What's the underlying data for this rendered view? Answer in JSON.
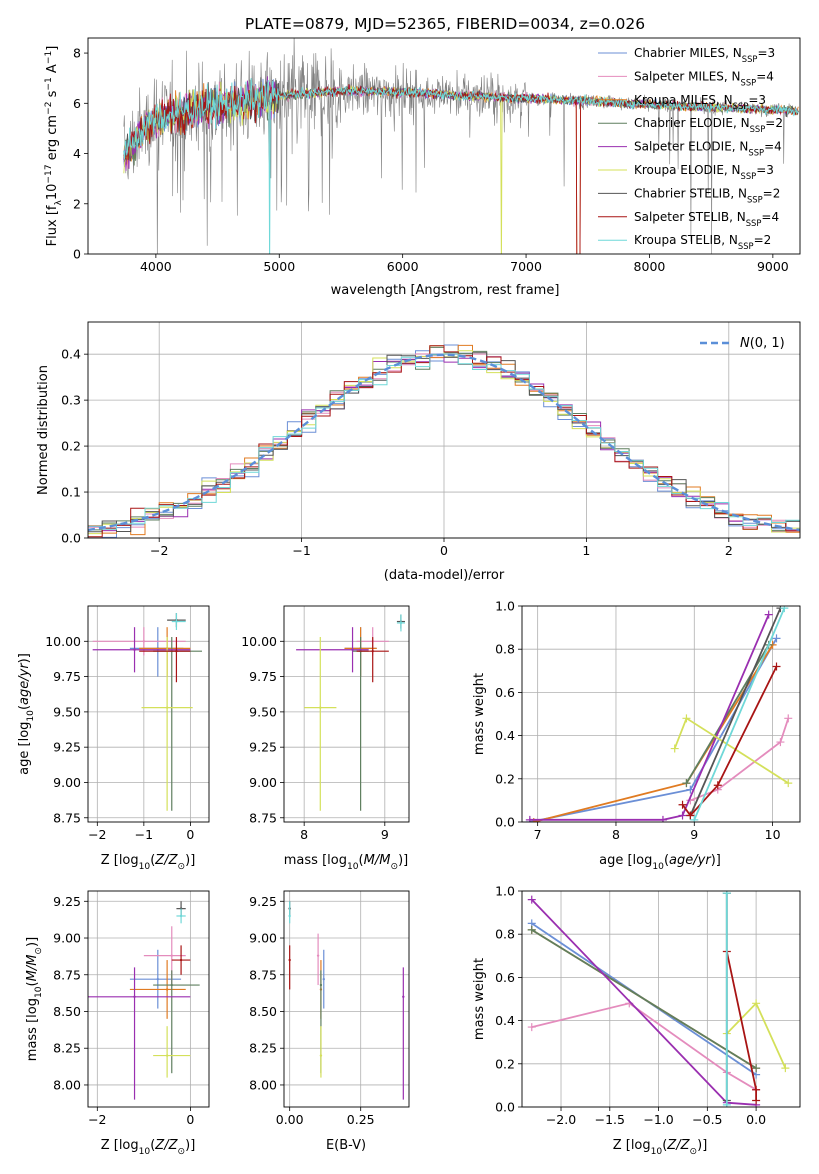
{
  "figure_title": "PLATE=0879, MJD=52365, FIBERID=0034, z=0.026",
  "colors": {
    "Chabrier MILES": "#6b8fd6",
    "Salpeter MILES": "#e48cbd",
    "Kroupa MILES": "#e07b22",
    "Chabrier ELODIE": "#5f7f5f",
    "Salpeter ELODIE": "#9a2fb0",
    "Kroupa ELODIE": "#d4e05a",
    "Chabrier STELIB": "#555555",
    "Salpeter STELIB": "#a81414",
    "Kroupa STELIB": "#6fd8d8",
    "data": "#808080",
    "normal": "#5b8fd8"
  },
  "legend_spectrum": [
    {
      "key": "Chabrier MILES",
      "pre": "Chabrier MILES, N",
      "sub": "SSP",
      "post": "=3"
    },
    {
      "key": "Salpeter MILES",
      "pre": "Salpeter MILES, N",
      "sub": "SSP",
      "post": "=4"
    },
    {
      "key": "Kroupa MILES",
      "pre": "Kroupa MILES, N",
      "sub": "SSP",
      "post": "=3"
    },
    {
      "key": "Chabrier ELODIE",
      "pre": "Chabrier ELODIE, N",
      "sub": "SSP",
      "post": "=2"
    },
    {
      "key": "Salpeter ELODIE",
      "pre": "Salpeter ELODIE, N",
      "sub": "SSP",
      "post": "=4"
    },
    {
      "key": "Kroupa ELODIE",
      "pre": "Kroupa ELODIE, N",
      "sub": "SSP",
      "post": "=3"
    },
    {
      "key": "Chabrier STELIB",
      "pre": "Chabrier STELIB, N",
      "sub": "SSP",
      "post": "=2"
    },
    {
      "key": "Salpeter STELIB",
      "pre": "Salpeter STELIB, N",
      "sub": "SSP",
      "post": "=4"
    },
    {
      "key": "Kroupa STELIB",
      "pre": "Kroupa STELIB, N",
      "sub": "SSP",
      "post": "=2"
    }
  ],
  "chart_data": [
    {
      "id": "spectrum",
      "type": "line",
      "xlabel": "wavelength [Angstrom, rest frame]",
      "ylabel": "Flux [f_λ 10⁻¹⁷ erg cm⁻² s⁻¹ A⁻¹]",
      "xlim": [
        3450,
        9220
      ],
      "ylim": [
        0,
        8.6
      ],
      "xticks": [
        4000,
        5000,
        6000,
        7000,
        8000,
        9000
      ],
      "yticks": [
        0,
        2,
        4,
        6,
        8
      ],
      "continuum_x": [
        3750,
        3900,
        4000,
        4300,
        4600,
        5000,
        5500,
        6000,
        6500,
        7000,
        7500,
        8000,
        8500,
        9000,
        9200
      ],
      "continuum_y": [
        4.0,
        5.0,
        5.4,
        5.8,
        6.0,
        6.3,
        6.5,
        6.45,
        6.3,
        6.2,
        6.1,
        5.95,
        5.85,
        5.75,
        5.7
      ]
    },
    {
      "id": "residuals",
      "type": "line",
      "xlabel": "(data-model)/error",
      "ylabel": "Normed distribution",
      "xlim": [
        -2.5,
        2.5
      ],
      "ylim": [
        0,
        0.47
      ],
      "xticks": [
        -2,
        -1,
        0,
        1,
        2
      ],
      "yticks": [
        0.0,
        0.1,
        0.2,
        0.3,
        0.4
      ],
      "legend": "N(0, 1)"
    },
    {
      "id": "age_vs_Z",
      "type": "scatter",
      "xlabel": "Z [log10(Z/Z☉)]",
      "ylabel": "age  [log10(age/yr)]",
      "xlim": [
        -2.2,
        0.4
      ],
      "ylim": [
        8.72,
        10.25
      ],
      "xticks": [
        -2,
        -1,
        0
      ],
      "yticks": [
        8.75,
        9.0,
        9.25,
        9.5,
        9.75,
        10.0
      ],
      "points": [
        {
          "model": "Chabrier MILES",
          "x": -0.7,
          "y": 9.95,
          "xerr": [
            0.6,
            0.55
          ],
          "yerr": [
            0.2,
            0.15
          ]
        },
        {
          "model": "Salpeter MILES",
          "x": -1.0,
          "y": 10.0,
          "xerr": [
            1.1,
            0.9
          ],
          "yerr": [
            0.1,
            0.1
          ]
        },
        {
          "model": "Kroupa MILES",
          "x": -0.5,
          "y": 9.95,
          "xerr": [
            0.6,
            0.5
          ],
          "yerr": [
            0.2,
            0.15
          ]
        },
        {
          "model": "Chabrier ELODIE",
          "x": -0.4,
          "y": 9.93,
          "xerr": [
            0.4,
            0.65
          ],
          "yerr": [
            1.13,
            0.1
          ]
        },
        {
          "model": "Salpeter ELODIE",
          "x": -1.2,
          "y": 9.94,
          "xerr": [
            0.9,
            1.2
          ],
          "yerr": [
            0.16,
            0.16
          ]
        },
        {
          "model": "Kroupa ELODIE",
          "x": -0.5,
          "y": 9.53,
          "xerr": [
            0.55,
            0.55
          ],
          "yerr": [
            0.73,
            0.5
          ]
        },
        {
          "model": "Chabrier STELIB",
          "x": -0.3,
          "y": 10.15,
          "xerr": [
            0.2,
            0.2
          ],
          "yerr": [
            0.05,
            0.05
          ]
        },
        {
          "model": "Salpeter STELIB",
          "x": -0.3,
          "y": 9.93,
          "xerr": [
            0.8,
            0.3
          ],
          "yerr": [
            0.22,
            0.1
          ]
        },
        {
          "model": "Kroupa STELIB",
          "x": -0.3,
          "y": 10.14,
          "xerr": [
            0.1,
            0.2
          ],
          "yerr": [
            0.06,
            0.06
          ]
        }
      ]
    },
    {
      "id": "age_vs_mass",
      "type": "scatter",
      "xlabel": "mass [log10(M/M☉)]",
      "ylabel": "",
      "xlim": [
        7.75,
        9.3
      ],
      "ylim": [
        8.72,
        10.25
      ],
      "xticks": [
        8,
        9
      ],
      "yticks": [
        8.75,
        9.0,
        9.25,
        9.5,
        9.75,
        10.0
      ],
      "points": [
        {
          "model": "Chabrier MILES",
          "x": 8.7,
          "y": 9.95,
          "xerr": [
            0.2,
            0.2
          ],
          "yerr": [
            0.2,
            0.15
          ]
        },
        {
          "model": "Salpeter MILES",
          "x": 8.85,
          "y": 10.0,
          "xerr": [
            0.2,
            0.2
          ],
          "yerr": [
            0.1,
            0.1
          ]
        },
        {
          "model": "Kroupa MILES",
          "x": 8.7,
          "y": 9.95,
          "xerr": [
            0.2,
            0.2
          ],
          "yerr": [
            0.2,
            0.15
          ]
        },
        {
          "model": "Chabrier ELODIE",
          "x": 8.7,
          "y": 9.93,
          "xerr": [
            0.1,
            0.1
          ],
          "yerr": [
            1.13,
            0.1
          ]
        },
        {
          "model": "Salpeter ELODIE",
          "x": 8.6,
          "y": 9.94,
          "xerr": [
            0.7,
            0.2
          ],
          "yerr": [
            0.16,
            0.16
          ]
        },
        {
          "model": "Kroupa ELODIE",
          "x": 8.2,
          "y": 9.53,
          "xerr": [
            0.2,
            0.2
          ],
          "yerr": [
            0.73,
            0.5
          ]
        },
        {
          "model": "Chabrier STELIB",
          "x": 9.2,
          "y": 10.14,
          "xerr": [
            0.05,
            0.05
          ],
          "yerr": [
            0.05,
            0.05
          ]
        },
        {
          "model": "Salpeter STELIB",
          "x": 8.85,
          "y": 9.93,
          "xerr": [
            0.2,
            0.2
          ],
          "yerr": [
            0.22,
            0.1
          ]
        },
        {
          "model": "Kroupa STELIB",
          "x": 9.2,
          "y": 10.13,
          "xerr": [
            0.05,
            0.05
          ],
          "yerr": [
            0.06,
            0.06
          ]
        }
      ]
    },
    {
      "id": "mass_vs_Z",
      "type": "scatter",
      "xlabel": "Z [log10(Z/Z☉)]",
      "ylabel": "mass [log10(M/M☉)]",
      "xlim": [
        -2.2,
        0.4
      ],
      "ylim": [
        7.85,
        9.32
      ],
      "xticks": [
        -2,
        0
      ],
      "yticks": [
        8.0,
        8.25,
        8.5,
        8.75,
        9.0,
        9.25
      ],
      "points": [
        {
          "model": "Chabrier MILES",
          "x": -0.7,
          "y": 8.72,
          "xerr": [
            0.6,
            0.5
          ],
          "yerr": [
            0.2,
            0.2
          ]
        },
        {
          "model": "Salpeter MILES",
          "x": -0.4,
          "y": 8.88,
          "xerr": [
            0.6,
            0.3
          ],
          "yerr": [
            0.2,
            0.2
          ]
        },
        {
          "model": "Kroupa MILES",
          "x": -0.5,
          "y": 8.65,
          "xerr": [
            0.8,
            0.4
          ],
          "yerr": [
            0.2,
            0.2
          ]
        },
        {
          "model": "Chabrier ELODIE",
          "x": -0.4,
          "y": 8.68,
          "xerr": [
            0.4,
            0.6
          ],
          "yerr": [
            0.6,
            0.1
          ]
        },
        {
          "model": "Salpeter ELODIE",
          "x": -1.2,
          "y": 8.6,
          "xerr": [
            1.0,
            1.2
          ],
          "yerr": [
            0.7,
            0.2
          ]
        },
        {
          "model": "Kroupa ELODIE",
          "x": -0.5,
          "y": 8.2,
          "xerr": [
            0.3,
            0.5
          ],
          "yerr": [
            0.15,
            0.2
          ]
        },
        {
          "model": "Chabrier STELIB",
          "x": -0.2,
          "y": 9.2,
          "xerr": [
            0.1,
            0.1
          ],
          "yerr": [
            0.05,
            0.05
          ]
        },
        {
          "model": "Salpeter STELIB",
          "x": -0.2,
          "y": 8.85,
          "xerr": [
            0.2,
            0.2
          ],
          "yerr": [
            0.1,
            0.1
          ]
        },
        {
          "model": "Kroupa STELIB",
          "x": -0.2,
          "y": 9.15,
          "xerr": [
            0.1,
            0.1
          ],
          "yerr": [
            0.05,
            0.05
          ]
        }
      ]
    },
    {
      "id": "mass_vs_EBV",
      "type": "scatter",
      "xlabel": "E(B-V)",
      "ylabel": "",
      "xlim": [
        -0.02,
        0.42
      ],
      "ylim": [
        7.85,
        9.32
      ],
      "xticks": [
        0.0,
        0.25
      ],
      "yticks": [
        8.0,
        8.25,
        8.5,
        8.75,
        9.0,
        9.25
      ],
      "points": [
        {
          "model": "Chabrier MILES",
          "x": 0.12,
          "y": 8.72,
          "yerr": [
            0.2,
            0.2
          ]
        },
        {
          "model": "Salpeter MILES",
          "x": 0.1,
          "y": 8.88,
          "yerr": [
            0.2,
            0.15
          ]
        },
        {
          "model": "Kroupa MILES",
          "x": 0.11,
          "y": 8.65,
          "yerr": [
            0.2,
            0.2
          ]
        },
        {
          "model": "Chabrier ELODIE",
          "x": 0.11,
          "y": 8.68,
          "yerr": [
            0.6,
            0.1
          ]
        },
        {
          "model": "Salpeter ELODIE",
          "x": 0.4,
          "y": 8.6,
          "yerr": [
            0.7,
            0.2
          ]
        },
        {
          "model": "Kroupa ELODIE",
          "x": 0.11,
          "y": 8.2,
          "yerr": [
            0.15,
            0.2
          ]
        },
        {
          "model": "Chabrier STELIB",
          "x": 0.0,
          "y": 9.2,
          "yerr": [
            0.05,
            0.05
          ]
        },
        {
          "model": "Salpeter STELIB",
          "x": 0.0,
          "y": 8.85,
          "yerr": [
            0.2,
            0.1
          ]
        },
        {
          "model": "Kroupa STELIB",
          "x": 0.0,
          "y": 9.15,
          "yerr": [
            0.05,
            0.1
          ]
        }
      ]
    },
    {
      "id": "weight_vs_age",
      "type": "line",
      "xlabel": "age  [log10(age/yr)]",
      "ylabel": "mass weight",
      "xlim": [
        6.8,
        10.35
      ],
      "ylim": [
        0,
        1.0
      ],
      "xticks": [
        7,
        8,
        9,
        10
      ],
      "yticks": [
        0.0,
        0.2,
        0.4,
        0.6,
        0.8,
        1.0
      ],
      "series": [
        {
          "name": "Chabrier MILES",
          "x": [
            6.9,
            8.95,
            10.05
          ],
          "y": [
            0.0,
            0.15,
            0.85
          ]
        },
        {
          "name": "Salpeter MILES",
          "x": [
            8.95,
            9.3,
            10.1,
            10.2
          ],
          "y": [
            0.1,
            0.15,
            0.37,
            0.48
          ]
        },
        {
          "name": "Kroupa MILES",
          "x": [
            6.95,
            8.9,
            10.0
          ],
          "y": [
            0.0,
            0.18,
            0.82
          ]
        },
        {
          "name": "Chabrier ELODIE",
          "x": [
            8.9,
            9.95
          ],
          "y": [
            0.18,
            0.82
          ]
        },
        {
          "name": "Salpeter ELODIE",
          "x": [
            6.9,
            8.6,
            8.85,
            9.95
          ],
          "y": [
            0.01,
            0.01,
            0.03,
            0.96
          ]
        },
        {
          "name": "Kroupa ELODIE",
          "x": [
            8.75,
            8.9,
            10.2
          ],
          "y": [
            0.34,
            0.48,
            0.18
          ]
        },
        {
          "name": "Chabrier STELIB",
          "x": [
            8.95,
            10.1
          ],
          "y": [
            0.03,
            0.99
          ]
        },
        {
          "name": "Salpeter STELIB",
          "x": [
            8.85,
            8.95,
            9.3,
            10.05
          ],
          "y": [
            0.08,
            0.03,
            0.17,
            0.72
          ]
        },
        {
          "name": "Kroupa STELIB",
          "x": [
            9.0,
            10.15
          ],
          "y": [
            0.01,
            0.99
          ]
        }
      ]
    },
    {
      "id": "weight_vs_Z",
      "type": "line",
      "xlabel": "Z [log10(Z/Z☉)]",
      "ylabel": "mass weight",
      "xlim": [
        -2.4,
        0.45
      ],
      "ylim": [
        0,
        1.0
      ],
      "xticks": [
        -2.0,
        -1.5,
        -1.0,
        -0.5,
        0.0
      ],
      "yticks": [
        0.0,
        0.2,
        0.4,
        0.6,
        0.8,
        1.0
      ],
      "series": [
        {
          "name": "Chabrier MILES",
          "x": [
            -2.3,
            0.0
          ],
          "y": [
            0.85,
            0.15
          ]
        },
        {
          "name": "Salpeter MILES",
          "x": [
            -2.3,
            -1.3,
            -0.3,
            0.0
          ],
          "y": [
            0.37,
            0.48,
            0.16,
            0.08
          ]
        },
        {
          "name": "Kroupa MILES",
          "x": [
            -2.3,
            0.0
          ],
          "y": [
            0.82,
            0.18
          ]
        },
        {
          "name": "Chabrier ELODIE",
          "x": [
            -2.3,
            0.0
          ],
          "y": [
            0.82,
            0.18
          ]
        },
        {
          "name": "Salpeter ELODIE",
          "x": [
            -2.3,
            -0.3,
            0.0
          ],
          "y": [
            0.96,
            0.02,
            0.01
          ]
        },
        {
          "name": "Kroupa ELODIE",
          "x": [
            -0.3,
            0.0,
            0.3
          ],
          "y": [
            0.34,
            0.48,
            0.18
          ]
        },
        {
          "name": "Chabrier STELIB",
          "x": [
            -0.3,
            -0.3
          ],
          "y": [
            0.03,
            0.99
          ]
        },
        {
          "name": "Salpeter STELIB",
          "x": [
            -0.3,
            0.0,
            0.0
          ],
          "y": [
            0.72,
            0.08,
            0.03
          ]
        },
        {
          "name": "Kroupa STELIB",
          "x": [
            -0.3,
            -0.3
          ],
          "y": [
            0.01,
            0.99
          ]
        }
      ]
    }
  ]
}
